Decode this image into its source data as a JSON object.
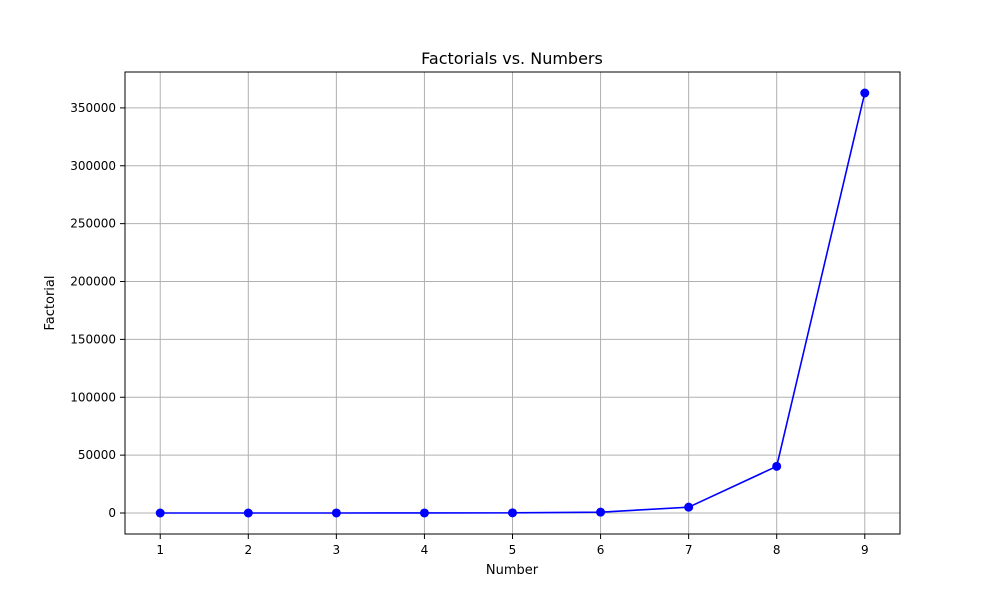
{
  "chart_data": {
    "type": "line",
    "title": "Factorials vs. Numbers",
    "xlabel": "Number",
    "ylabel": "Factorial",
    "x": [
      1,
      2,
      3,
      4,
      5,
      6,
      7,
      8,
      9
    ],
    "series": [
      {
        "values": [
          1,
          2,
          6,
          24,
          120,
          720,
          5040,
          40320,
          362880
        ],
        "color": "#0000ff",
        "marker": "circle"
      }
    ],
    "x_ticks": [
      "1",
      "2",
      "3",
      "4",
      "5",
      "6",
      "7",
      "8",
      "9"
    ],
    "y_ticks": [
      "0",
      "50000",
      "100000",
      "150000",
      "200000",
      "250000",
      "300000",
      "350000"
    ],
    "xlim": [
      0.6,
      9.4
    ],
    "ylim": [
      -18143,
      381023
    ],
    "grid": true,
    "colors": {
      "line": "#0000ff",
      "grid": "#b0b0b0",
      "axes": "#000000",
      "background": "#ffffff"
    }
  }
}
